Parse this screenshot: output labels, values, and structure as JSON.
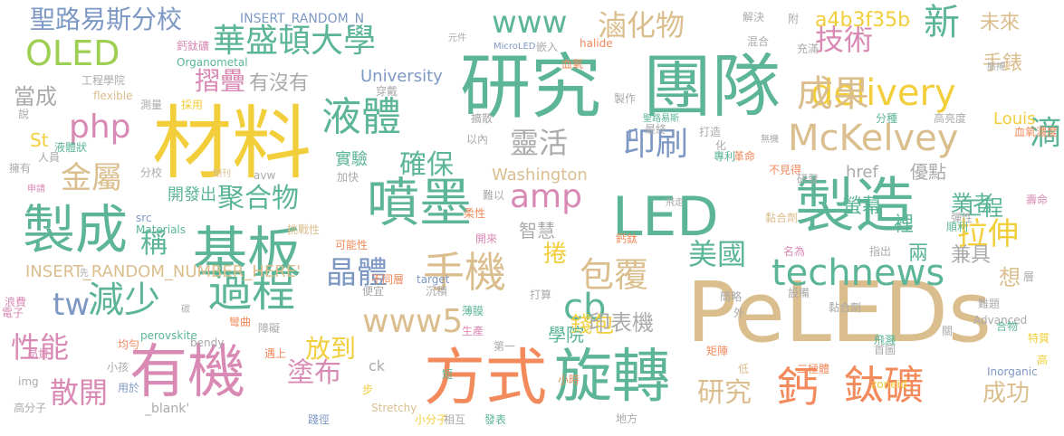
{
  "palette": {
    "teal": "#5bb596",
    "tan": "#dbbe8e",
    "pink": "#d98ab4",
    "orange": "#f28a5c",
    "slate": "#7e98c4",
    "lime": "#9ccf52",
    "yellow": "#f2ce3a",
    "gray": "#aaaaaa"
  },
  "words": [
    {
      "text": "PeLEDs",
      "color": "tan"
    },
    {
      "text": "材料",
      "color": "yellow"
    },
    {
      "text": "研究",
      "color": "teal"
    },
    {
      "text": "團隊",
      "color": "teal"
    },
    {
      "text": "製造",
      "color": "teal"
    },
    {
      "text": "方式",
      "color": "orange"
    },
    {
      "text": "旋轉",
      "color": "teal"
    },
    {
      "text": "有機",
      "color": "pink"
    },
    {
      "text": "LED",
      "color": "teal"
    },
    {
      "text": "噴墨",
      "color": "teal"
    },
    {
      "text": "基板",
      "color": "teal"
    },
    {
      "text": "製成",
      "color": "teal"
    },
    {
      "text": "過程",
      "color": "teal"
    },
    {
      "text": "減少",
      "color": "teal"
    },
    {
      "text": "手機",
      "color": "tan"
    },
    {
      "text": "鈣",
      "color": "orange"
    },
    {
      "text": "鈦礦",
      "color": "orange"
    },
    {
      "text": "液體",
      "color": "teal"
    },
    {
      "text": "McKelvey",
      "color": "tan"
    },
    {
      "text": "delivery",
      "color": "yellow"
    },
    {
      "text": "technews",
      "color": "teal"
    },
    {
      "text": "華盛頓大學",
      "color": "teal"
    },
    {
      "text": "OLED",
      "color": "lime"
    },
    {
      "text": "www",
      "color": "teal"
    },
    {
      "text": "www5",
      "color": "tan"
    },
    {
      "text": "php",
      "color": "pink"
    },
    {
      "text": "tw",
      "color": "slate"
    },
    {
      "text": "cb",
      "color": "teal"
    },
    {
      "text": "amp",
      "color": "pink"
    },
    {
      "text": "滷化物",
      "color": "tan"
    },
    {
      "text": "技術",
      "color": "pink"
    },
    {
      "text": "新",
      "color": "teal"
    },
    {
      "text": "成果",
      "color": "tan"
    },
    {
      "text": "印刷",
      "color": "slate"
    },
    {
      "text": "確保",
      "color": "teal"
    },
    {
      "text": "靈活",
      "color": "gray"
    },
    {
      "text": "金屬",
      "color": "tan"
    },
    {
      "text": "聚合物",
      "color": "teal"
    },
    {
      "text": "晶體",
      "color": "slate"
    },
    {
      "text": "包覆",
      "color": "tan"
    },
    {
      "text": "美國",
      "color": "teal"
    },
    {
      "text": "拉伸",
      "color": "yellow"
    },
    {
      "text": "性能",
      "color": "pink"
    },
    {
      "text": "散開",
      "color": "pink"
    },
    {
      "text": "塗布",
      "color": "pink"
    },
    {
      "text": "研究",
      "color": "tan"
    },
    {
      "text": "成功",
      "color": "tan"
    },
    {
      "text": "滴",
      "color": "teal"
    },
    {
      "text": "放到",
      "color": "yellow"
    },
    {
      "text": "錢包",
      "color": "yellow"
    },
    {
      "text": "捲",
      "color": "yellow"
    },
    {
      "text": "聖路易斯分校",
      "color": "slate"
    },
    {
      "text": "摺疊",
      "color": "pink"
    },
    {
      "text": "有沒有",
      "color": "gray"
    },
    {
      "text": "當成",
      "color": "gray"
    },
    {
      "text": "稱",
      "color": "teal"
    },
    {
      "text": "業者",
      "color": "teal"
    },
    {
      "text": "想",
      "color": "tan"
    },
    {
      "text": "未來",
      "color": "tan"
    },
    {
      "text": "手錶",
      "color": "tan"
    },
    {
      "text": "a4b3f35b",
      "color": "yellow"
    },
    {
      "text": "Louis",
      "color": "yellow"
    },
    {
      "text": "University",
      "color": "slate"
    },
    {
      "text": "Washington",
      "color": "tan"
    },
    {
      "text": "St",
      "color": "yellow"
    },
    {
      "text": "ck",
      "color": "gray"
    },
    {
      "text": "n",
      "color": "slate"
    },
    {
      "text": "href",
      "color": "gray"
    },
    {
      "text": "螢幕",
      "color": "teal"
    },
    {
      "text": "優點",
      "color": "gray"
    },
    {
      "text": "兩",
      "color": "teal"
    },
    {
      "text": "兼具",
      "color": "gray"
    },
    {
      "text": "裡",
      "color": "teal"
    },
    {
      "text": "工程",
      "color": "teal"
    },
    {
      "text": "智慧",
      "color": "gray"
    },
    {
      "text": "印表機",
      "color": "gray"
    },
    {
      "text": "學院",
      "color": "teal"
    },
    {
      "text": "實驗",
      "color": "teal"
    },
    {
      "text": "開發出",
      "color": "teal"
    },
    {
      "text": "INSERT_RANDOM_NUMBER_HERE'",
      "color": "tan"
    },
    {
      "text": "INSERT_RANDOM_N",
      "color": "slate"
    },
    {
      "text": "_blank'",
      "color": "gray"
    },
    {
      "text": "解決",
      "color": "gray"
    },
    {
      "text": "附",
      "color": "gray"
    },
    {
      "text": "元件",
      "color": "gray"
    },
    {
      "text": "MicroLED",
      "color": "slate"
    },
    {
      "text": "嵌入",
      "color": "gray"
    },
    {
      "text": "halide",
      "color": "orange"
    },
    {
      "text": "混合",
      "color": "gray"
    },
    {
      "text": "充滿",
      "color": "gray"
    },
    {
      "text": "脈搏",
      "color": "gray"
    },
    {
      "text": "鈣鈦礦",
      "color": "pink"
    },
    {
      "text": "Organometal",
      "color": "teal"
    },
    {
      "text": "工程學院",
      "color": "gray"
    },
    {
      "text": "flexible",
      "color": "tan"
    },
    {
      "text": "穿戴",
      "color": "gray"
    },
    {
      "text": "血氧",
      "color": "orange"
    },
    {
      "text": "擴散",
      "color": "gray"
    },
    {
      "text": "製作",
      "color": "gray"
    },
    {
      "text": "測量",
      "color": "gray"
    },
    {
      "text": "採用",
      "color": "yellow"
    },
    {
      "text": "說",
      "color": "gray"
    },
    {
      "text": "聖路易斯",
      "color": "teal"
    },
    {
      "text": "最終",
      "color": "gray"
    },
    {
      "text": "打造",
      "color": "gray"
    },
    {
      "text": "分種",
      "color": "teal"
    },
    {
      "text": "高亮度",
      "color": "gray"
    },
    {
      "text": "液體狀",
      "color": "teal"
    },
    {
      "text": "以內",
      "color": "gray"
    },
    {
      "text": "人員",
      "color": "gray"
    },
    {
      "text": "化",
      "color": "gray"
    },
    {
      "text": "無機",
      "color": "gray"
    },
    {
      "text": "血氧濃度",
      "color": "orange"
    },
    {
      "text": "擁有",
      "color": "gray"
    },
    {
      "text": "專利",
      "color": "teal"
    },
    {
      "text": "革命",
      "color": "orange"
    },
    {
      "text": "分校",
      "color": "gray"
    },
    {
      "text": "期刊",
      "color": "tan"
    },
    {
      "text": "avw",
      "color": "gray"
    },
    {
      "text": "加快",
      "color": "gray"
    },
    {
      "text": "不見得",
      "color": "orange"
    },
    {
      "text": "研發",
      "color": "gray"
    },
    {
      "text": "申請",
      "color": "pink"
    },
    {
      "text": "難以",
      "color": "gray"
    },
    {
      "text": "飛走",
      "color": "gray"
    },
    {
      "text": "壽命",
      "color": "pink"
    },
    {
      "text": "src",
      "color": "slate"
    },
    {
      "text": "柔性",
      "color": "orange"
    },
    {
      "text": "彈性",
      "color": "gray"
    },
    {
      "text": "Materials",
      "color": "teal"
    },
    {
      "text": "黏合劑",
      "color": "tan"
    },
    {
      "text": "順利",
      "color": "teal"
    },
    {
      "text": "挑戰性",
      "color": "tan"
    },
    {
      "text": "可能性",
      "color": "orange"
    },
    {
      "text": "開來",
      "color": "pink"
    },
    {
      "text": "鈣鈦",
      "color": "orange"
    },
    {
      "text": "名為",
      "color": "pink"
    },
    {
      "text": "指出",
      "color": "gray"
    },
    {
      "text": "先",
      "color": "gray"
    },
    {
      "text": "浪費",
      "color": "pink"
    },
    {
      "text": "不同層",
      "color": "orange"
    },
    {
      "text": "target",
      "color": "slate"
    },
    {
      "text": "打算",
      "color": "gray"
    },
    {
      "text": "簡略",
      "color": "gray"
    },
    {
      "text": "層",
      "color": "gray"
    },
    {
      "text": "電子",
      "color": "pink"
    },
    {
      "text": "便宜",
      "color": "gray"
    },
    {
      "text": "沉積",
      "color": "gray"
    },
    {
      "text": "設備",
      "color": "gray"
    },
    {
      "text": "黏合劑",
      "color": "gray"
    },
    {
      "text": "難題",
      "color": "gray"
    },
    {
      "text": "碳",
      "color": "gray"
    },
    {
      "text": "彎曲",
      "color": "orange"
    },
    {
      "text": "薄膜",
      "color": "teal"
    },
    {
      "text": "外",
      "color": "gray"
    },
    {
      "text": "Advanced",
      "color": "gray"
    },
    {
      "text": "合物",
      "color": "teal"
    },
    {
      "text": "perovskite",
      "color": "teal"
    },
    {
      "text": "障礙",
      "color": "gray"
    },
    {
      "text": "關",
      "color": "gray"
    },
    {
      "text": "特質",
      "color": "yellow"
    },
    {
      "text": "均勻",
      "color": "orange"
    },
    {
      "text": "bendy",
      "color": "gray"
    },
    {
      "text": "生產",
      "color": "pink"
    },
    {
      "text": "飛濺",
      "color": "teal"
    },
    {
      "text": "首圖",
      "color": "gray"
    },
    {
      "text": "遇上",
      "color": "orange"
    },
    {
      "text": "第一",
      "color": "gray"
    },
    {
      "text": "矩陣",
      "color": "orange"
    },
    {
      "text": "高",
      "color": "yellow"
    },
    {
      "text": "昂貴",
      "color": "pink"
    },
    {
      "text": "小孩",
      "color": "gray"
    },
    {
      "text": "img",
      "color": "gray"
    },
    {
      "text": "用於",
      "color": "slate"
    },
    {
      "text": "短",
      "color": "teal"
    },
    {
      "text": "小時",
      "color": "orange"
    },
    {
      "text": "低",
      "color": "tan"
    },
    {
      "text": "二極體",
      "color": "orange"
    },
    {
      "text": "Inorganic",
      "color": "slate"
    },
    {
      "text": "zoneid",
      "color": "yellow"
    },
    {
      "text": "步",
      "color": "yellow"
    },
    {
      "text": "高分子",
      "color": "gray"
    },
    {
      "text": "踐徑",
      "color": "slate"
    },
    {
      "text": "Stretchy",
      "color": "tan"
    },
    {
      "text": "小分子",
      "color": "yellow"
    },
    {
      "text": "相互",
      "color": "gray"
    },
    {
      "text": "發表",
      "color": "teal"
    },
    {
      "text": "地方",
      "color": "gray"
    },
    {
      "text": "來源",
      "color": "tan"
    }
  ]
}
